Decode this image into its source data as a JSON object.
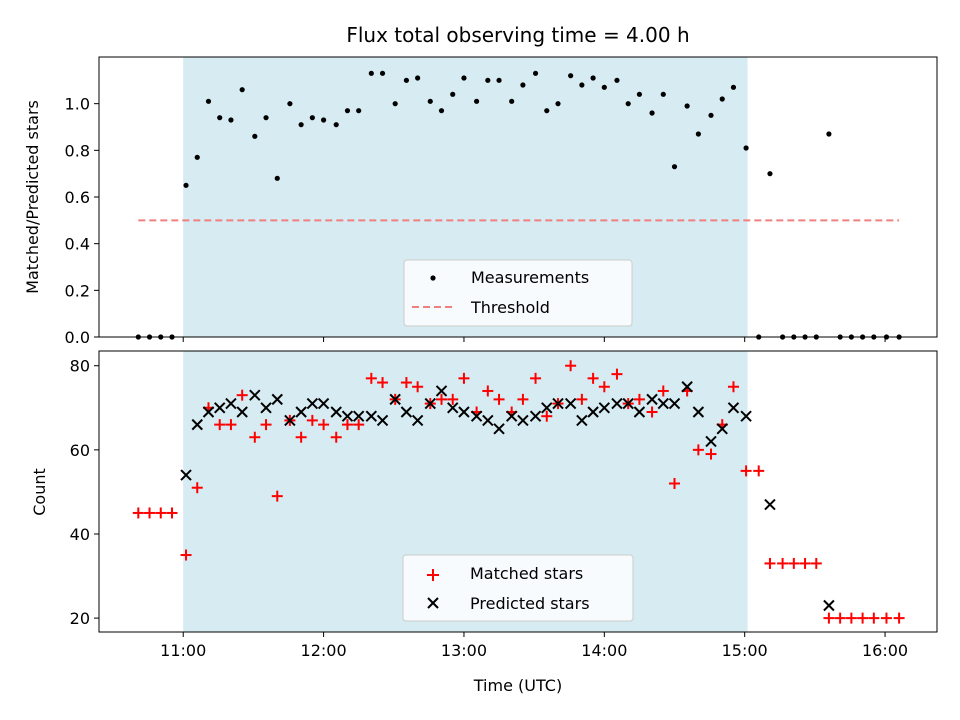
{
  "chart_data": [
    {
      "type": "scatter",
      "title": "Flux total observing time = 4.00 h",
      "ylabel": "Matched/Predicted stars",
      "ylim": [
        0,
        1.2
      ],
      "yticks": [
        0.0,
        0.2,
        0.4,
        0.6,
        0.8,
        1.0
      ],
      "ytick_labels": [
        "0.0",
        "0.2",
        "0.4",
        "0.6",
        "0.8",
        "1.0"
      ],
      "xlim_hours": [
        10.4,
        16.37
      ],
      "xticks_hours": [
        11,
        12,
        13,
        14,
        15,
        16
      ],
      "shaded_region_hours": [
        11.0,
        15.02
      ],
      "shade_color": "#add8e6",
      "legend_position": "lower center",
      "series": [
        {
          "name": "Measurements",
          "marker": "dot",
          "color": "#000000",
          "x_hours": [
            10.68,
            10.76,
            10.84,
            10.92,
            11.02,
            11.1,
            11.18,
            11.26,
            11.34,
            11.42,
            11.51,
            11.59,
            11.67,
            11.76,
            11.84,
            11.92,
            12.0,
            12.09,
            12.17,
            12.25,
            12.34,
            12.42,
            12.51,
            12.59,
            12.67,
            12.76,
            12.84,
            12.92,
            13.0,
            13.09,
            13.17,
            13.25,
            13.34,
            13.42,
            13.51,
            13.59,
            13.67,
            13.76,
            13.84,
            13.92,
            14.0,
            14.09,
            14.17,
            14.25,
            14.34,
            14.42,
            14.5,
            14.59,
            14.67,
            14.76,
            14.84,
            14.92,
            15.01,
            15.1,
            15.18,
            15.27,
            15.35,
            15.43,
            15.51,
            15.6,
            15.68,
            15.76,
            15.84,
            15.92,
            16.01,
            16.1
          ],
          "y": [
            0,
            0,
            0,
            0,
            0.65,
            0.77,
            1.01,
            0.94,
            0.93,
            1.06,
            0.86,
            0.94,
            0.68,
            1.0,
            0.91,
            0.94,
            0.93,
            0.91,
            0.97,
            0.97,
            1.13,
            1.13,
            1.0,
            1.1,
            1.11,
            1.01,
            0.97,
            1.04,
            1.11,
            1.01,
            1.1,
            1.1,
            1.01,
            1.08,
            1.13,
            0.97,
            1.0,
            1.12,
            1.08,
            1.11,
            1.07,
            1.1,
            1.0,
            1.04,
            0.96,
            1.04,
            0.73,
            0.99,
            0.87,
            0.95,
            1.02,
            1.07,
            0.81,
            0,
            0.7,
            0,
            0,
            0,
            0,
            0.87,
            0,
            0,
            0,
            0,
            0,
            0
          ]
        },
        {
          "name": "Threshold",
          "line": "dashed",
          "color": "#f08080",
          "x_hours": [
            10.68,
            16.1
          ],
          "y": [
            0.5,
            0.5
          ]
        }
      ]
    },
    {
      "type": "scatter",
      "xlabel": "Time (UTC)",
      "ylabel": "Count",
      "ylim": [
        16.7,
        83.5
      ],
      "yticks": [
        20,
        40,
        60,
        80
      ],
      "ytick_labels": [
        "20",
        "40",
        "60",
        "80"
      ],
      "xlim_hours": [
        10.4,
        16.37
      ],
      "xticks_hours": [
        11,
        12,
        13,
        14,
        15,
        16
      ],
      "xtick_labels": [
        "11:00",
        "12:00",
        "13:00",
        "14:00",
        "15:00",
        "16:00"
      ],
      "shaded_region_hours": [
        11.0,
        15.02
      ],
      "shade_color": "#add8e6",
      "legend_position": "lower center",
      "series": [
        {
          "name": "Matched stars",
          "marker": "plus",
          "color": "#ff0000",
          "x_hours": [
            10.68,
            10.76,
            10.84,
            10.92,
            11.02,
            11.1,
            11.18,
            11.26,
            11.34,
            11.42,
            11.51,
            11.59,
            11.67,
            11.76,
            11.84,
            11.92,
            12.0,
            12.09,
            12.17,
            12.25,
            12.34,
            12.42,
            12.51,
            12.59,
            12.67,
            12.76,
            12.84,
            12.92,
            13.0,
            13.09,
            13.17,
            13.25,
            13.34,
            13.42,
            13.51,
            13.59,
            13.67,
            13.76,
            13.84,
            13.92,
            14.0,
            14.09,
            14.17,
            14.25,
            14.34,
            14.42,
            14.5,
            14.59,
            14.67,
            14.76,
            14.84,
            14.92,
            15.01,
            15.1,
            15.18,
            15.27,
            15.35,
            15.43,
            15.51,
            15.6,
            15.68,
            15.76,
            15.84,
            15.92,
            16.01,
            16.1
          ],
          "y": [
            45,
            45,
            45,
            45,
            35,
            51,
            70,
            66,
            66,
            73,
            63,
            66,
            49,
            67,
            63,
            67,
            66,
            63,
            66,
            66,
            77,
            76,
            72,
            76,
            75,
            71,
            72,
            72,
            77,
            69,
            74,
            72,
            69,
            72,
            77,
            68,
            71,
            80,
            72,
            77,
            75,
            78,
            71,
            72,
            69,
            74,
            52,
            74,
            60,
            59,
            66,
            75,
            55,
            55,
            33,
            33,
            33,
            33,
            33,
            20,
            20,
            20,
            20,
            20,
            20,
            20
          ]
        },
        {
          "name": "Predicted stars",
          "marker": "x",
          "color": "#000000",
          "x_hours": [
            11.02,
            11.1,
            11.18,
            11.26,
            11.34,
            11.42,
            11.51,
            11.59,
            11.67,
            11.76,
            11.84,
            11.92,
            12.0,
            12.09,
            12.17,
            12.25,
            12.34,
            12.42,
            12.51,
            12.59,
            12.67,
            12.76,
            12.84,
            12.92,
            13.0,
            13.09,
            13.17,
            13.25,
            13.34,
            13.42,
            13.51,
            13.59,
            13.67,
            13.76,
            13.84,
            13.92,
            14.0,
            14.09,
            14.17,
            14.25,
            14.34,
            14.42,
            14.5,
            14.59,
            14.67,
            14.76,
            14.84,
            14.92,
            15.01,
            15.18,
            15.6
          ],
          "y": [
            54,
            66,
            69,
            70,
            71,
            69,
            73,
            70,
            72,
            67,
            69,
            71,
            71,
            69,
            68,
            68,
            68,
            67,
            72,
            69,
            67,
            71,
            74,
            70,
            69,
            68,
            67,
            65,
            68,
            67,
            68,
            70,
            71,
            71,
            67,
            69,
            70,
            71,
            71,
            69,
            72,
            71,
            71,
            75,
            69,
            62,
            65,
            70,
            68,
            47,
            23
          ]
        }
      ]
    }
  ]
}
